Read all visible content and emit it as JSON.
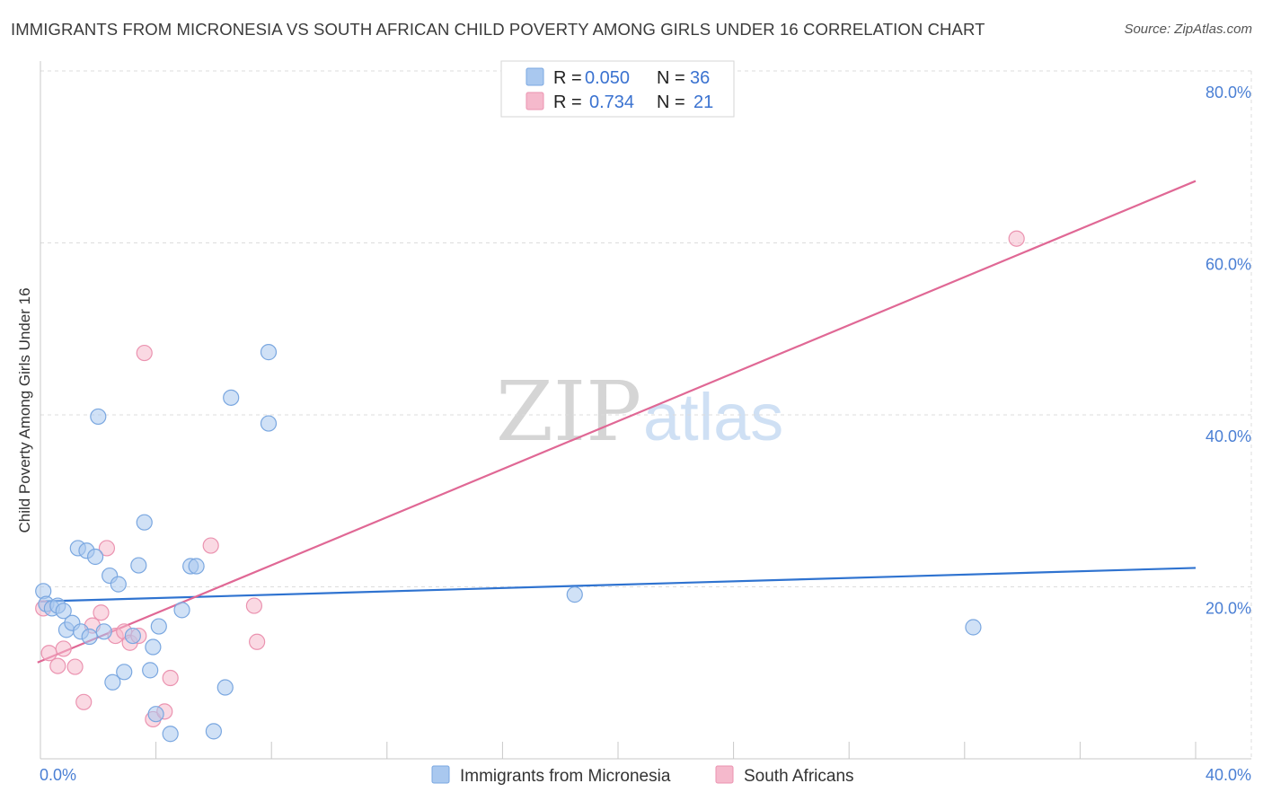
{
  "title": "IMMIGRANTS FROM MICRONESIA VS SOUTH AFRICAN CHILD POVERTY AMONG GIRLS UNDER 16 CORRELATION CHART",
  "source": "Source: ZipAtlas.com",
  "watermark": {
    "zip": "ZIP",
    "atlas": "atlas"
  },
  "colors": {
    "blue_fill": "#a9c8ef",
    "blue_stroke": "#7aa7e0",
    "blue_line": "#2f73d0",
    "pink_fill": "#f5b9cc",
    "pink_stroke": "#eb93b0",
    "pink_line": "#e06895",
    "grid": "#dcdcdc",
    "tick_label": "#4a7fd4"
  },
  "legend": {
    "rows": [
      {
        "r_label": "R =",
        "r_value": "0.050",
        "n_label": "N =",
        "n_value": "36"
      },
      {
        "r_label": "R =",
        "r_value": "0.734",
        "n_label": "N =",
        "n_value": "21"
      }
    ]
  },
  "chart_data": {
    "type": "scatter",
    "title": "IMMIGRANTS FROM MICRONESIA VS SOUTH AFRICAN CHILD POVERTY AMONG GIRLS UNDER 16 CORRELATION CHART",
    "xlabel": "",
    "ylabel": "Child Poverty Among Girls Under 16",
    "xlim": [
      0,
      40
    ],
    "ylim": [
      0,
      80
    ],
    "x_tick_labels": [
      "0.0%",
      "40.0%"
    ],
    "y_ticks": [
      20,
      40,
      60,
      80
    ],
    "y_tick_labels": [
      "20.0%",
      "40.0%",
      "60.0%",
      "80.0%"
    ],
    "series": [
      {
        "name": "Immigrants from Micronesia",
        "r": 0.05,
        "n": 36,
        "trend": {
          "x": [
            0,
            40
          ],
          "y": [
            18.3,
            22.2
          ]
        },
        "points": [
          [
            0.1,
            19.5
          ],
          [
            0.2,
            18.0
          ],
          [
            0.4,
            17.5
          ],
          [
            0.6,
            17.8
          ],
          [
            0.8,
            17.2
          ],
          [
            0.9,
            15.0
          ],
          [
            1.1,
            15.8
          ],
          [
            1.3,
            24.5
          ],
          [
            1.4,
            14.8
          ],
          [
            1.6,
            24.2
          ],
          [
            1.7,
            14.2
          ],
          [
            1.9,
            23.5
          ],
          [
            2.0,
            39.8
          ],
          [
            2.2,
            14.8
          ],
          [
            2.4,
            21.3
          ],
          [
            2.5,
            8.9
          ],
          [
            2.7,
            20.3
          ],
          [
            2.9,
            10.1
          ],
          [
            3.2,
            14.3
          ],
          [
            3.4,
            22.5
          ],
          [
            3.6,
            27.5
          ],
          [
            3.8,
            10.3
          ],
          [
            3.9,
            13.0
          ],
          [
            4.0,
            5.2
          ],
          [
            4.1,
            15.4
          ],
          [
            4.5,
            2.9
          ],
          [
            4.9,
            17.3
          ],
          [
            5.2,
            22.4
          ],
          [
            5.4,
            22.4
          ],
          [
            6.0,
            3.2
          ],
          [
            6.4,
            8.3
          ],
          [
            6.6,
            42.0
          ],
          [
            7.9,
            47.3
          ],
          [
            7.9,
            39.0
          ],
          [
            18.5,
            19.1
          ],
          [
            32.3,
            15.3
          ]
        ]
      },
      {
        "name": "South Africans",
        "r": 0.734,
        "n": 21,
        "trend": {
          "x": [
            -0.1,
            40
          ],
          "y": [
            11.2,
            67.2
          ]
        },
        "points": [
          [
            0.1,
            17.5
          ],
          [
            0.3,
            12.3
          ],
          [
            0.6,
            10.8
          ],
          [
            0.8,
            12.8
          ],
          [
            1.2,
            10.7
          ],
          [
            1.5,
            6.6
          ],
          [
            1.8,
            15.5
          ],
          [
            2.1,
            17.0
          ],
          [
            2.3,
            24.5
          ],
          [
            2.6,
            14.3
          ],
          [
            2.9,
            14.8
          ],
          [
            3.1,
            13.5
          ],
          [
            3.4,
            14.3
          ],
          [
            3.6,
            47.2
          ],
          [
            3.9,
            4.6
          ],
          [
            4.3,
            5.5
          ],
          [
            4.5,
            9.4
          ],
          [
            5.9,
            24.8
          ],
          [
            7.4,
            17.8
          ],
          [
            7.5,
            13.6
          ],
          [
            33.8,
            60.5
          ]
        ]
      }
    ]
  }
}
